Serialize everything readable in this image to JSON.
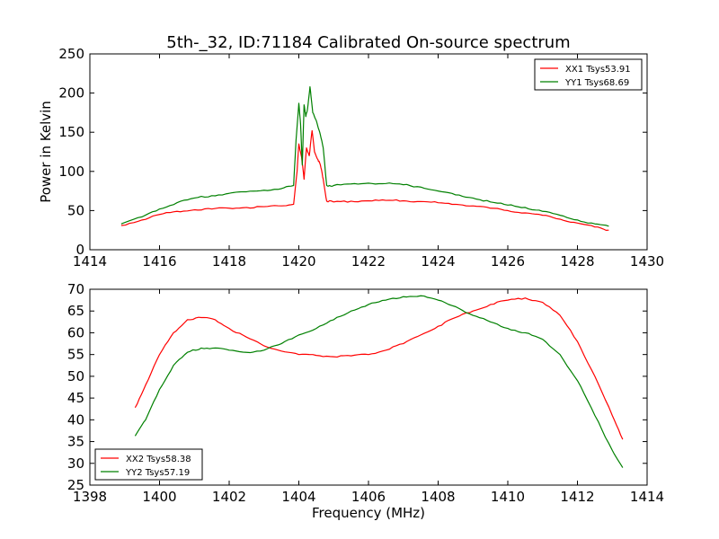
{
  "figure": {
    "title": "5th-_32, ID:71184 Calibrated On-source spectrum",
    "shared_xlabel": "Frequency (MHz)"
  },
  "chart_data": [
    {
      "type": "line",
      "title": "5th-_32, ID:71184 Calibrated On-source spectrum",
      "xlabel": "",
      "ylabel": "Power in Kelvin",
      "xlim": [
        1414,
        1430
      ],
      "ylim": [
        0,
        250
      ],
      "xticks": [
        1414,
        1416,
        1418,
        1420,
        1422,
        1424,
        1426,
        1428,
        1430
      ],
      "yticks": [
        0,
        50,
        100,
        150,
        200,
        250
      ],
      "grid": false,
      "legend_position": "top-right",
      "series": [
        {
          "name": "XX1 Tsys53.91",
          "color": "#ff0000",
          "x": [
            1414.9,
            1415.5,
            1416.0,
            1416.5,
            1417.0,
            1417.5,
            1418.0,
            1418.5,
            1419.0,
            1419.5,
            1419.85,
            1419.95,
            1420.0,
            1420.08,
            1420.15,
            1420.22,
            1420.3,
            1420.38,
            1420.45,
            1420.55,
            1420.62,
            1420.7,
            1420.8,
            1421.0,
            1421.5,
            1422.0,
            1422.5,
            1423.0,
            1423.5,
            1424.0,
            1424.5,
            1425.0,
            1425.5,
            1426.0,
            1426.5,
            1427.0,
            1427.5,
            1428.0,
            1428.5,
            1428.9
          ],
          "y": [
            31,
            38,
            45,
            49,
            51,
            52,
            53,
            54,
            55,
            56,
            58,
            100,
            135,
            118,
            90,
            130,
            120,
            152,
            125,
            115,
            108,
            90,
            62,
            61,
            62,
            62.5,
            63,
            62.5,
            61.5,
            60,
            58,
            56,
            53,
            50,
            47,
            44,
            39,
            34,
            29,
            25
          ]
        },
        {
          "name": "YY1 Tsys68.69",
          "color": "#008000",
          "x": [
            1414.9,
            1415.5,
            1416.0,
            1416.5,
            1417.0,
            1417.5,
            1418.0,
            1418.5,
            1419.0,
            1419.5,
            1419.85,
            1419.92,
            1420.0,
            1420.05,
            1420.1,
            1420.15,
            1420.2,
            1420.25,
            1420.32,
            1420.4,
            1420.5,
            1420.6,
            1420.7,
            1420.8,
            1421.0,
            1421.5,
            1422.0,
            1422.5,
            1423.0,
            1423.5,
            1424.0,
            1424.5,
            1425.0,
            1425.5,
            1426.0,
            1426.5,
            1427.0,
            1427.5,
            1428.0,
            1428.5,
            1428.9
          ],
          "y": [
            33,
            42,
            52,
            60,
            66,
            69,
            72,
            74,
            76,
            78,
            82,
            140,
            187,
            160,
            108,
            185,
            170,
            180,
            208,
            175,
            165,
            150,
            130,
            82,
            82,
            84,
            85,
            84.5,
            83,
            80,
            75,
            70,
            66,
            61,
            57,
            54,
            49,
            44,
            38,
            33,
            30
          ]
        }
      ]
    },
    {
      "type": "line",
      "title": "",
      "xlabel": "Frequency (MHz)",
      "ylabel": "",
      "xlim": [
        1398,
        1414
      ],
      "ylim": [
        25,
        70
      ],
      "xticks": [
        1398,
        1400,
        1402,
        1404,
        1406,
        1408,
        1410,
        1412,
        1414
      ],
      "yticks": [
        25,
        30,
        35,
        40,
        45,
        50,
        55,
        60,
        65,
        70
      ],
      "grid": false,
      "legend_position": "bottom-left",
      "series": [
        {
          "name": "XX2 Tsys58.38",
          "color": "#ff0000",
          "x": [
            1399.3,
            1399.6,
            1400.0,
            1400.4,
            1400.8,
            1401.2,
            1401.6,
            1402.0,
            1402.5,
            1403.0,
            1403.5,
            1404.0,
            1404.5,
            1405.0,
            1405.5,
            1406.0,
            1406.5,
            1407.0,
            1407.5,
            1408.0,
            1408.5,
            1409.0,
            1409.5,
            1410.0,
            1410.5,
            1411.0,
            1411.5,
            1412.0,
            1412.5,
            1413.0,
            1413.3
          ],
          "y": [
            42.8,
            48,
            55,
            60,
            63,
            63.5,
            63,
            61,
            59,
            57,
            55.8,
            55,
            54.8,
            54.5,
            54.7,
            55,
            56,
            57.5,
            59.5,
            61.5,
            63.5,
            65,
            66.5,
            67.5,
            68,
            67,
            64,
            58,
            50,
            41,
            35.5
          ]
        },
        {
          "name": "YY2 Tsys57.19",
          "color": "#008000",
          "x": [
            1399.3,
            1399.6,
            1400.0,
            1400.4,
            1400.8,
            1401.2,
            1401.6,
            1402.0,
            1402.5,
            1403.0,
            1403.5,
            1404.0,
            1404.5,
            1405.0,
            1405.5,
            1406.0,
            1406.5,
            1407.0,
            1407.5,
            1408.0,
            1408.5,
            1409.0,
            1409.5,
            1410.0,
            1410.5,
            1411.0,
            1411.5,
            1412.0,
            1412.5,
            1413.0,
            1413.3
          ],
          "y": [
            36.3,
            40,
            47,
            52.5,
            55.5,
            56.5,
            56.5,
            56,
            55.5,
            56,
            57.5,
            59.5,
            61,
            63,
            65,
            66.5,
            67.5,
            68.3,
            68.5,
            67.5,
            66,
            64,
            62.5,
            61,
            60,
            58.5,
            55,
            49,
            41,
            33,
            29
          ]
        }
      ]
    }
  ]
}
